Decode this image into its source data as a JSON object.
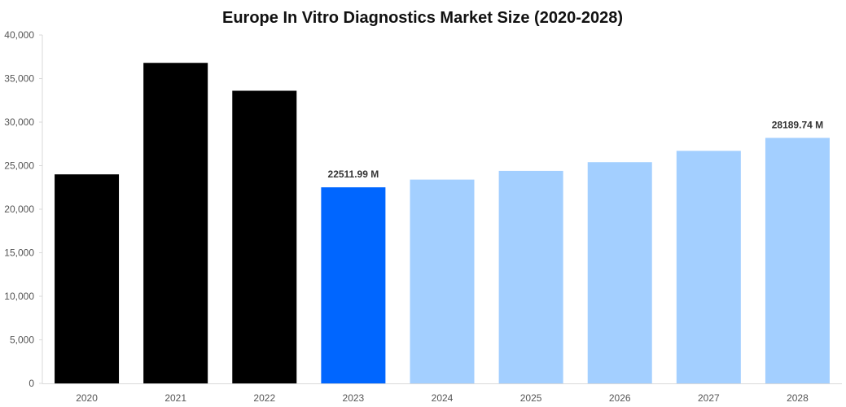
{
  "colors": {
    "historical": "#000000",
    "current": "#0066ff",
    "forecast": "#a3cfff",
    "axis": "#d9d9d9",
    "text": "#555555"
  },
  "chart_data": {
    "type": "bar",
    "title": "Europe In Vitro Diagnostics Market Size (2020-2028)",
    "xlabel": "",
    "ylabel": "",
    "ylim": [
      0,
      40000
    ],
    "yticks": [
      0,
      5000,
      10000,
      15000,
      20000,
      25000,
      30000,
      35000,
      40000
    ],
    "ytick_labels": [
      "0",
      "5,000",
      "10,000",
      "15,000",
      "20,000",
      "25,000",
      "30,000",
      "35,000",
      "40,000"
    ],
    "grid": false,
    "categories": [
      "2020",
      "2021",
      "2022",
      "2023",
      "2024",
      "2025",
      "2026",
      "2027",
      "2028"
    ],
    "values": [
      24000,
      36800,
      33600,
      22511.99,
      23400,
      24400,
      25400,
      26700,
      28189.74
    ],
    "bar_kinds": [
      "historical",
      "historical",
      "historical",
      "current",
      "forecast",
      "forecast",
      "forecast",
      "forecast",
      "forecast"
    ],
    "data_labels": [
      {
        "category": "2023",
        "text": "22511.99 M"
      },
      {
        "category": "2028",
        "text": "28189.74 M"
      }
    ]
  }
}
